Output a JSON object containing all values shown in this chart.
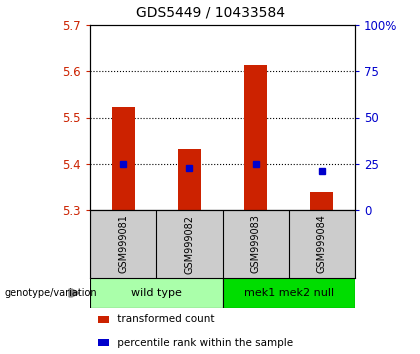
{
  "title": "GDS5449 / 10433584",
  "samples": [
    "GSM999081",
    "GSM999082",
    "GSM999083",
    "GSM999084"
  ],
  "red_values": [
    5.523,
    5.432,
    5.614,
    5.338
  ],
  "blue_values": [
    5.4,
    5.39,
    5.4,
    5.385
  ],
  "ymin": 5.3,
  "ymax": 5.7,
  "yticks": [
    5.3,
    5.4,
    5.5,
    5.6,
    5.7
  ],
  "right_yticks": [
    0,
    25,
    50,
    75,
    100
  ],
  "right_yticklabels": [
    "0",
    "25",
    "50",
    "75",
    "100%"
  ],
  "dotted_lines": [
    5.4,
    5.5,
    5.6
  ],
  "groups": [
    {
      "label": "wild type",
      "indices": [
        0,
        1
      ],
      "color": "#aaffaa"
    },
    {
      "label": "mek1 mek2 null",
      "indices": [
        2,
        3
      ],
      "color": "#00dd00"
    }
  ],
  "bar_color": "#cc2200",
  "blue_color": "#0000cc",
  "sample_box_color": "#cccccc",
  "genotype_label": "genotype/variation",
  "legend_items": [
    {
      "color": "#cc2200",
      "label": " transformed count"
    },
    {
      "color": "#0000cc",
      "label": " percentile rank within the sample"
    }
  ],
  "bar_width": 0.35,
  "title_fontsize": 10,
  "tick_fontsize": 8.5,
  "sample_fontsize": 7,
  "group_fontsize": 8,
  "legend_fontsize": 7.5
}
